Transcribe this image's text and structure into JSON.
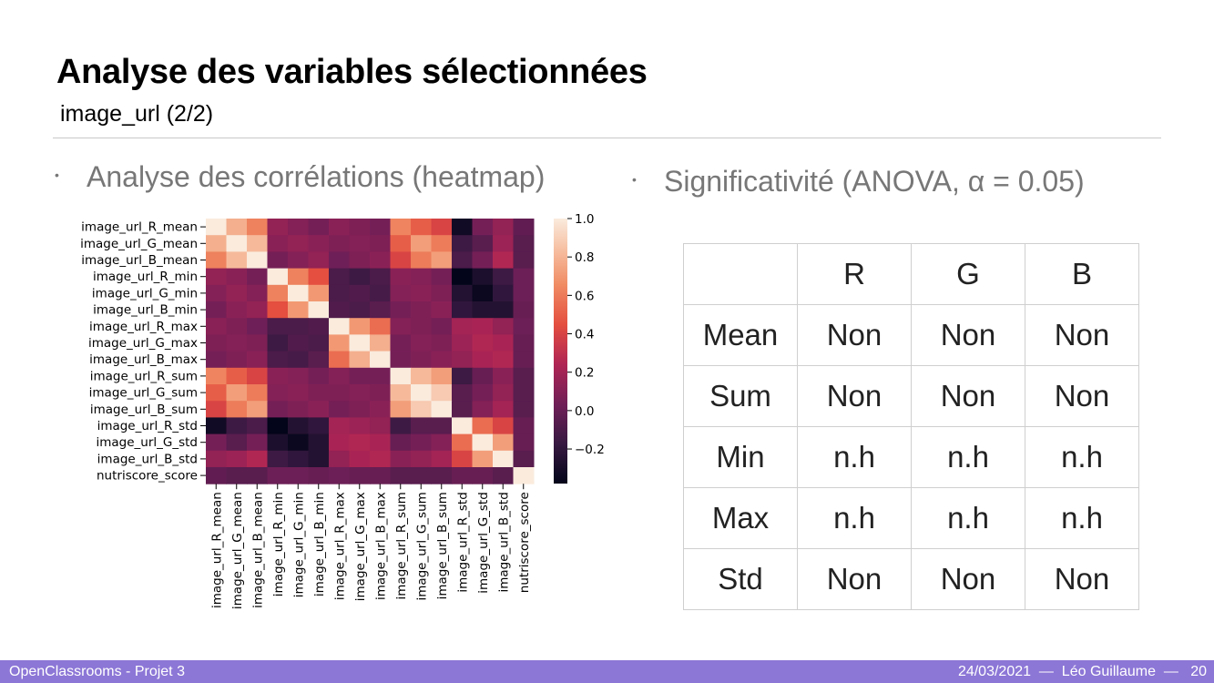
{
  "slide": {
    "title": "Analyse des variables sélectionnées",
    "subtitle": "image_url (2/2)",
    "bullet_left": "Analyse des corrélations (heatmap)",
    "bullet_right": "Significativité (ANOVA, α = 0.05)",
    "bullet_symbol": "•"
  },
  "chart_data": {
    "type": "heatmap",
    "variables": [
      "image_url_R_mean",
      "image_url_G_mean",
      "image_url_B_mean",
      "image_url_R_min",
      "image_url_G_min",
      "image_url_B_min",
      "image_url_R_max",
      "image_url_G_max",
      "image_url_B_max",
      "image_url_R_sum",
      "image_url_G_sum",
      "image_url_B_sum",
      "image_url_R_std",
      "image_url_G_std",
      "image_url_B_std",
      "nutriscore_score"
    ],
    "matrix": [
      [
        1.0,
        0.78,
        0.62,
        0.15,
        0.1,
        0.05,
        0.12,
        0.08,
        0.05,
        0.63,
        0.5,
        0.4,
        -0.32,
        0.05,
        0.15,
        -0.02
      ],
      [
        0.78,
        1.0,
        0.82,
        0.12,
        0.15,
        0.12,
        0.08,
        0.1,
        0.08,
        0.5,
        0.72,
        0.6,
        -0.15,
        -0.05,
        0.18,
        -0.05
      ],
      [
        0.62,
        0.82,
        1.0,
        0.05,
        0.1,
        0.15,
        0.03,
        0.08,
        0.12,
        0.4,
        0.6,
        0.72,
        -0.1,
        0.05,
        0.25,
        -0.05
      ],
      [
        0.15,
        0.12,
        0.05,
        1.0,
        0.62,
        0.45,
        -0.1,
        -0.15,
        -0.1,
        0.12,
        0.1,
        0.05,
        -0.38,
        -0.28,
        -0.15,
        0.02
      ],
      [
        0.1,
        0.15,
        0.1,
        0.62,
        1.0,
        0.7,
        -0.1,
        -0.08,
        -0.12,
        0.1,
        0.12,
        0.08,
        -0.25,
        -0.35,
        -0.2,
        0.02
      ],
      [
        0.05,
        0.12,
        0.15,
        0.45,
        0.7,
        1.0,
        -0.08,
        -0.1,
        -0.05,
        0.05,
        0.08,
        0.12,
        -0.2,
        -0.25,
        -0.25,
        0.0
      ],
      [
        0.12,
        0.08,
        0.03,
        -0.1,
        -0.1,
        -0.08,
        1.0,
        0.7,
        0.55,
        0.1,
        0.08,
        0.05,
        0.2,
        0.22,
        0.15,
        0.02
      ],
      [
        0.08,
        0.1,
        0.08,
        -0.15,
        -0.08,
        -0.1,
        0.7,
        1.0,
        0.78,
        0.05,
        0.1,
        0.08,
        0.18,
        0.25,
        0.22,
        0.0
      ],
      [
        0.05,
        0.08,
        0.12,
        -0.1,
        -0.12,
        -0.05,
        0.55,
        0.78,
        1.0,
        0.05,
        0.08,
        0.12,
        0.15,
        0.22,
        0.25,
        0.0
      ],
      [
        0.63,
        0.5,
        0.4,
        0.12,
        0.1,
        0.05,
        0.1,
        0.05,
        0.05,
        1.0,
        0.82,
        0.72,
        -0.15,
        0.0,
        0.12,
        -0.05
      ],
      [
        0.5,
        0.72,
        0.6,
        0.1,
        0.12,
        0.08,
        0.08,
        0.1,
        0.08,
        0.82,
        1.0,
        0.88,
        -0.05,
        0.05,
        0.15,
        -0.05
      ],
      [
        0.4,
        0.6,
        0.72,
        0.05,
        0.08,
        0.12,
        0.05,
        0.08,
        0.12,
        0.72,
        0.88,
        1.0,
        -0.05,
        0.1,
        0.2,
        -0.05
      ],
      [
        -0.32,
        -0.15,
        -0.1,
        -0.38,
        -0.25,
        -0.2,
        0.2,
        0.18,
        0.15,
        -0.15,
        -0.05,
        -0.05,
        1.0,
        0.55,
        0.4,
        0.0
      ],
      [
        0.05,
        -0.05,
        0.05,
        -0.28,
        -0.35,
        -0.25,
        0.22,
        0.25,
        0.22,
        0.0,
        0.05,
        0.1,
        0.55,
        1.0,
        0.72,
        0.0
      ],
      [
        0.15,
        0.18,
        0.25,
        -0.15,
        -0.2,
        -0.25,
        0.15,
        0.22,
        0.25,
        0.12,
        0.15,
        0.2,
        0.4,
        0.72,
        1.0,
        -0.05
      ],
      [
        -0.02,
        -0.05,
        -0.05,
        0.02,
        0.02,
        0.0,
        0.02,
        0.0,
        0.0,
        -0.05,
        -0.05,
        -0.05,
        0.0,
        0.0,
        -0.05,
        1.0
      ]
    ],
    "colorbar": {
      "min": -0.38,
      "max": 1.0,
      "ticks": [
        1.0,
        0.8,
        0.6,
        0.4,
        0.2,
        0.0,
        -0.2
      ],
      "tick_labels": [
        "1.0",
        "0.8",
        "0.6",
        "0.4",
        "0.2",
        "0.0",
        "−0.2"
      ]
    },
    "colormap": "rocket",
    "grid": false
  },
  "anova_table": {
    "header": [
      "",
      "R",
      "G",
      "B"
    ],
    "rows": [
      {
        "label": "Mean",
        "values": [
          "Non",
          "Non",
          "Non"
        ]
      },
      {
        "label": "Sum",
        "values": [
          "Non",
          "Non",
          "Non"
        ]
      },
      {
        "label": "Min",
        "values": [
          "n.h",
          "n.h",
          "n.h"
        ]
      },
      {
        "label": "Max",
        "values": [
          "n.h",
          "n.h",
          "n.h"
        ]
      },
      {
        "label": "Std",
        "values": [
          "Non",
          "Non",
          "Non"
        ]
      }
    ]
  },
  "footer": {
    "left": "OpenClassrooms - Projet 3",
    "right": "24/03/2021  —  Léo Guillaume  —   20",
    "color": "#8c76d6"
  }
}
